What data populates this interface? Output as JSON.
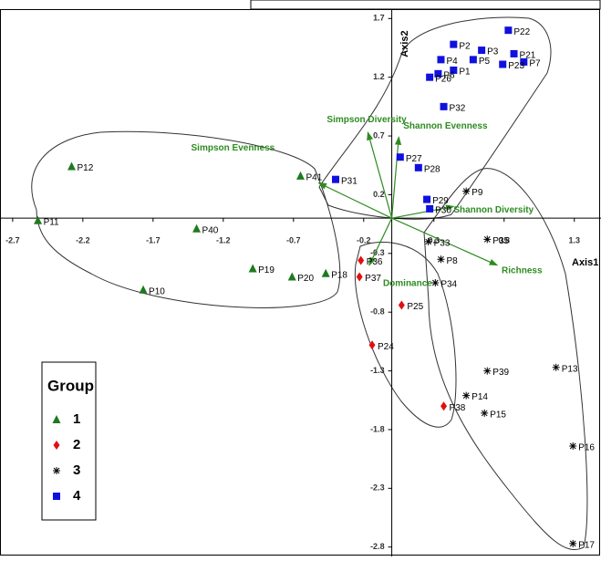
{
  "chart_data": {
    "type": "scatter",
    "x_label": "Axis1",
    "y_label": "Axis2",
    "legend_title": "Group",
    "legend": "bottom-left",
    "xlim": [
      -2.79,
      1.49
    ],
    "ylim": [
      -2.88,
      1.78
    ],
    "xticks": [
      -2.7,
      -2.2,
      -1.7,
      -1.2,
      -0.7,
      -0.2,
      0.3,
      0.8,
      1.3
    ],
    "yticks": [
      -2.8,
      -2.3,
      -1.8,
      -1.3,
      -0.8,
      -0.3,
      0.2,
      0.7,
      1.2,
      1.7
    ],
    "grid": false,
    "series": [
      {
        "name": "1",
        "marker": "triangle",
        "color": "#1e7a1e",
        "labels": [
          "P12",
          "P11",
          "P40",
          "P41",
          "P19",
          "P10",
          "P20",
          "P18"
        ],
        "x": [
          -2.28,
          -2.52,
          -1.39,
          -0.65,
          -0.99,
          -1.77,
          -0.71,
          -0.47
        ],
        "values": [
          0.44,
          -0.02,
          -0.09,
          0.36,
          -0.43,
          -0.61,
          -0.5,
          -0.47
        ]
      },
      {
        "name": "2",
        "marker": "diamond",
        "color": "#e01010",
        "labels": [
          "P36",
          "P37",
          "P25",
          "P24",
          "P38"
        ],
        "x": [
          -0.22,
          -0.23,
          0.07,
          -0.14,
          0.37
        ],
        "values": [
          -0.36,
          -0.5,
          -0.74,
          -1.08,
          -1.6
        ]
      },
      {
        "name": "3",
        "marker": "star",
        "color": "#000000",
        "labels": [
          "P9",
          "P33",
          "P8",
          "P35",
          "P34",
          "P39",
          "P13",
          "P14",
          "P15",
          "P16",
          "P17"
        ],
        "x": [
          0.53,
          0.26,
          0.35,
          0.68,
          0.31,
          0.68,
          1.17,
          0.53,
          0.66,
          1.29,
          1.29
        ],
        "values": [
          0.23,
          -0.2,
          -0.35,
          -0.18,
          -0.55,
          -1.3,
          -1.27,
          -1.51,
          -1.66,
          -1.94,
          -2.77
        ]
      },
      {
        "name": "4",
        "marker": "square",
        "color": "#1010e0",
        "labels": [
          "P22",
          "P2",
          "P4",
          "P3",
          "P21",
          "P7",
          "P23",
          "P5",
          "P1",
          "P6",
          "P26",
          "P32",
          "P27",
          "P28",
          "P31",
          "P29",
          "P30"
        ],
        "x": [
          0.83,
          0.44,
          0.35,
          0.64,
          0.87,
          0.94,
          0.79,
          0.58,
          0.44,
          0.33,
          0.27,
          0.37,
          0.06,
          0.19,
          -0.4,
          0.25,
          0.27
        ],
        "values": [
          1.6,
          1.48,
          1.35,
          1.43,
          1.4,
          1.33,
          1.31,
          1.35,
          1.26,
          1.23,
          1.2,
          0.95,
          0.52,
          0.43,
          0.33,
          0.16,
          0.08
        ]
      }
    ],
    "vectors": {
      "color": "#2e8b22",
      "names": [
        "Simpson Diversity",
        "Shannon Evenness",
        "Simpson Evenness",
        "Shannon Diversity",
        "Richness",
        "Dominance"
      ],
      "x": [
        -0.17,
        0.05,
        -0.52,
        0.44,
        0.75,
        -0.16
      ],
      "values": [
        0.73,
        0.69,
        0.3,
        0.1,
        -0.4,
        -0.4
      ]
    }
  }
}
